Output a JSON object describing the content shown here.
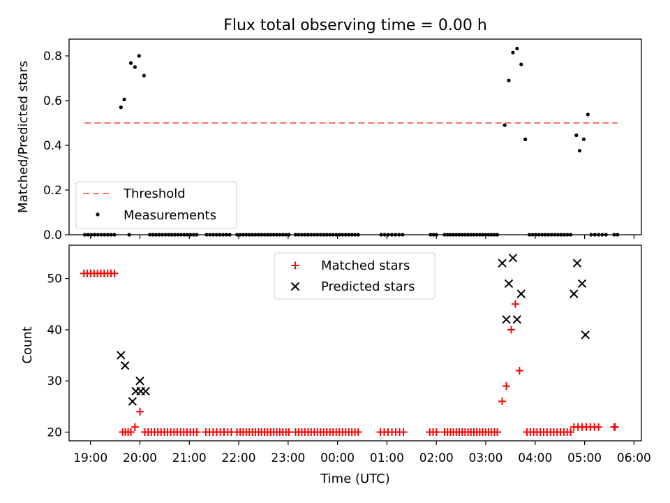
{
  "figure": {
    "title": "Flux total observing time = 0.00 h",
    "xlabel": "Time (UTC)"
  },
  "chart_data": [
    {
      "type": "scatter",
      "ylabel": "Matched/Predicted stars",
      "ylim": [
        0,
        0.875
      ],
      "yticks": [
        0.0,
        0.2,
        0.4,
        0.6,
        0.8
      ],
      "ytick_labels": [
        "0.0",
        "0.2",
        "0.4",
        "0.6",
        "0.8"
      ],
      "xlim": [
        "18:34",
        "06:09"
      ],
      "xticks": [
        "19:00",
        "20:00",
        "21:00",
        "22:00",
        "23:00",
        "00:00",
        "01:00",
        "02:00",
        "03:00",
        "04:00",
        "05:00",
        "06:00"
      ],
      "legend": {
        "placement": "lower-left",
        "entries": [
          {
            "label": "Threshold",
            "marker": "dashed-line",
            "color": "#ff7070"
          },
          {
            "label": "Measurements",
            "marker": "dot",
            "color": "#000000"
          }
        ]
      },
      "threshold": {
        "name": "Threshold",
        "y": 0.5,
        "x_range": [
          "18:53",
          "05:40"
        ],
        "color": "#ff7070"
      },
      "measurements": {
        "name": "Measurements",
        "color": "#000000",
        "points": [
          [
            "19:37",
            0.57
          ],
          [
            "19:41",
            0.605
          ],
          [
            "19:49",
            0.768
          ],
          [
            "19:54",
            0.75
          ],
          [
            "19:59",
            0.8
          ],
          [
            "20:05",
            0.712
          ],
          [
            "03:23",
            0.49
          ],
          [
            "03:28",
            0.69
          ],
          [
            "03:33",
            0.815
          ],
          [
            "03:38",
            0.833
          ],
          [
            "03:43",
            0.762
          ],
          [
            "03:48",
            0.427
          ],
          [
            "04:50",
            0.445
          ],
          [
            "04:54",
            0.376
          ],
          [
            "04:59",
            0.427
          ],
          [
            "05:04",
            0.538
          ]
        ],
        "zero_runs": [
          [
            "18:53",
            "19:29",
            10
          ],
          [
            "19:47",
            "19:47",
            1
          ],
          [
            "20:12",
            "21:09",
            16
          ],
          [
            "21:21",
            "21:49",
            8
          ],
          [
            "21:58",
            "23:01",
            18
          ],
          [
            "23:09",
            "00:25",
            21
          ],
          [
            "00:53",
            "01:19",
            7
          ],
          [
            "01:53",
            "02:00",
            3
          ],
          [
            "02:10",
            "03:14",
            19
          ],
          [
            "03:53",
            "04:43",
            14
          ],
          [
            "05:08",
            "05:26",
            5
          ],
          [
            "05:36",
            "05:40",
            2
          ]
        ]
      }
    },
    {
      "type": "scatter",
      "ylabel": "Count",
      "ylim": [
        18.3,
        56.5
      ],
      "yticks": [
        20,
        30,
        40,
        50
      ],
      "ytick_labels": [
        "20",
        "30",
        "40",
        "50"
      ],
      "xlim": [
        "18:34",
        "06:09"
      ],
      "xticks": [
        "19:00",
        "20:00",
        "21:00",
        "22:00",
        "23:00",
        "00:00",
        "01:00",
        "02:00",
        "03:00",
        "04:00",
        "05:00",
        "06:00"
      ],
      "legend": {
        "placement": "upper-center",
        "entries": [
          {
            "label": "Matched stars",
            "marker": "plus",
            "color": "#ff0000"
          },
          {
            "label": "Predicted stars",
            "marker": "cross",
            "color": "#000000"
          }
        ]
      },
      "matched": {
        "name": "Matched stars",
        "color": "#ff0000",
        "points": [
          [
            "19:54",
            21
          ],
          [
            "20:00",
            24
          ],
          [
            "03:20",
            26
          ],
          [
            "03:25",
            29
          ],
          [
            "03:31",
            40
          ],
          [
            "03:36",
            45
          ],
          [
            "03:41",
            32
          ],
          [
            "04:47",
            21
          ],
          [
            "04:52",
            21
          ],
          [
            "04:57",
            21
          ],
          [
            "05:02",
            21
          ],
          [
            "05:07",
            21
          ],
          [
            "05:12",
            21
          ],
          [
            "05:17",
            21
          ],
          [
            "05:36",
            21
          ],
          [
            "05:37",
            21
          ]
        ],
        "runs": [
          [
            "18:52",
            "19:29",
            51,
            10
          ],
          [
            "19:39",
            "19:49",
            20,
            4
          ],
          [
            "20:06",
            "21:09",
            20,
            17
          ],
          [
            "21:20",
            "21:51",
            20,
            8
          ],
          [
            "21:58",
            "23:01",
            20,
            18
          ],
          [
            "23:09",
            "00:25",
            20,
            21
          ],
          [
            "00:52",
            "01:20",
            20,
            7
          ],
          [
            "01:52",
            "02:00",
            20,
            3
          ],
          [
            "02:10",
            "03:14",
            20,
            19
          ],
          [
            "03:50",
            "04:43",
            20,
            14
          ]
        ]
      },
      "predicted": {
        "name": "Predicted stars",
        "color": "#000000",
        "points": [
          [
            "19:37",
            35
          ],
          [
            "19:42",
            33
          ],
          [
            "19:51",
            26
          ],
          [
            "19:55",
            28
          ],
          [
            "20:00",
            30
          ],
          [
            "20:01",
            28
          ],
          [
            "20:07",
            28
          ],
          [
            "03:20",
            53
          ],
          [
            "03:25",
            42
          ],
          [
            "03:28",
            49
          ],
          [
            "03:33",
            54
          ],
          [
            "03:38",
            42
          ],
          [
            "03:43",
            47
          ],
          [
            "04:47",
            47
          ],
          [
            "04:51",
            53
          ],
          [
            "04:57",
            49
          ],
          [
            "05:01",
            39
          ]
        ]
      }
    }
  ]
}
